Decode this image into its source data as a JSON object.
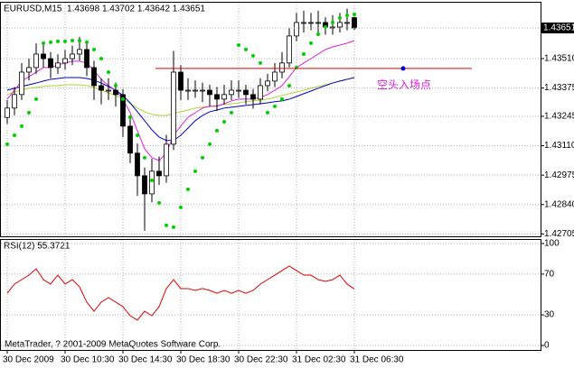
{
  "chart_data": [
    {
      "type": "candlestick",
      "title": "EURUSD,M15  1.43698 1.43702 1.43642 1.43651",
      "categories": [
        "30 Dec 2009",
        null,
        null,
        null,
        null,
        null,
        null,
        null,
        "30 Dec 10:30",
        null,
        null,
        null,
        null,
        null,
        null,
        null,
        "30 Dec 14:30",
        null,
        null,
        null,
        null,
        null,
        null,
        null,
        "30 Dec 18:30",
        null,
        null,
        null,
        null,
        null,
        null,
        null,
        "30 Dec 22:30",
        null,
        null,
        null,
        null,
        null,
        null,
        null,
        "31 Dec 02:30",
        null,
        null,
        null,
        null,
        null,
        null,
        null,
        "31 Dec 06:30"
      ],
      "open": [
        1.4324,
        1.43283,
        1.43345,
        1.43448,
        1.43469,
        1.43531,
        1.4351,
        1.43469,
        1.4349,
        1.4351,
        1.43531,
        1.43552,
        1.43469,
        1.43386,
        1.43365,
        1.43365,
        1.43345,
        1.432,
        1.43076,
        1.42972,
        1.42889,
        1.42993,
        1.42972,
        1.43117,
        1.43448,
        1.43365,
        1.43365,
        1.43365,
        1.43365,
        1.43345,
        1.43324,
        1.43345,
        1.43365,
        1.43365,
        1.43345,
        1.43324,
        1.43386,
        1.43407,
        1.43448,
        1.4349,
        1.43614,
        1.43676,
        1.43676,
        1.43676,
        1.43676,
        1.43655,
        1.43655,
        1.43676,
        1.43698
      ],
      "high": [
        1.4332,
        1.4338,
        1.4349,
        1.4351,
        1.4358,
        1.4358,
        1.4354,
        1.4353,
        1.4355,
        1.4357,
        1.4361,
        1.4358,
        1.435,
        1.4342,
        1.4342,
        1.434,
        1.4337,
        1.4325,
        1.4312,
        1.4301,
        1.4305,
        1.4306,
        1.4316,
        1.43545,
        1.4348,
        1.4342,
        1.4341,
        1.434,
        1.4339,
        1.4338,
        1.4339,
        1.4341,
        1.4341,
        1.4339,
        1.4337,
        1.4342,
        1.4344,
        1.4349,
        1.4354,
        1.4365,
        1.4372,
        1.4373,
        1.4372,
        1.4373,
        1.437,
        1.4371,
        1.4372,
        1.4374,
        1.43702
      ],
      "low": [
        1.4321,
        1.4325,
        1.4332,
        1.4341,
        1.4344,
        1.4347,
        1.4342,
        1.4344,
        1.4346,
        1.4348,
        1.435,
        1.4343,
        1.4332,
        1.433,
        1.4332,
        1.4329,
        1.4315,
        1.4303,
        1.4288,
        1.4272,
        1.4285,
        1.4293,
        1.4294,
        1.4309,
        1.4332,
        1.4332,
        1.4333,
        1.4331,
        1.4329,
        1.4327,
        1.433,
        1.4332,
        1.4333,
        1.433,
        1.4328,
        1.433,
        1.4336,
        1.4338,
        1.4342,
        1.4347,
        1.4359,
        1.4363,
        1.4364,
        1.4363,
        1.4362,
        1.4362,
        1.4363,
        1.4364,
        1.43642
      ],
      "close": [
        1.43283,
        1.43345,
        1.43448,
        1.43469,
        1.43531,
        1.4351,
        1.43469,
        1.4349,
        1.4351,
        1.43531,
        1.43552,
        1.43469,
        1.43386,
        1.43365,
        1.43365,
        1.43345,
        1.432,
        1.43076,
        1.42972,
        1.42889,
        1.42993,
        1.42972,
        1.43117,
        1.43448,
        1.43365,
        1.43365,
        1.43365,
        1.43365,
        1.43345,
        1.43324,
        1.43345,
        1.43365,
        1.43365,
        1.43345,
        1.43324,
        1.43386,
        1.43407,
        1.43448,
        1.4349,
        1.43614,
        1.43676,
        1.43676,
        1.43676,
        1.43676,
        1.43655,
        1.43655,
        1.43676,
        1.43676,
        1.43651
      ],
      "sar": {
        "color": "#00d000",
        "values": [
          1.43117,
          1.43158,
          1.432,
          1.43262,
          1.43324,
          1.43581,
          1.43585,
          1.43589,
          1.43589,
          1.43593,
          1.43593,
          1.43585,
          1.43552,
          1.4351,
          1.43448,
          1.43386,
          1.43324,
          1.43241,
          1.43158,
          1.43055,
          1.42951,
          1.42848,
          1.42744,
          1.42736,
          1.42827,
          1.4291,
          1.42993,
          1.43055,
          1.43117,
          1.43179,
          1.4322,
          1.43262,
          1.43572,
          1.43552,
          1.43523,
          1.4349,
          1.43262,
          1.43291,
          1.43324,
          1.43386,
          1.43469,
          1.43531,
          1.43581,
          1.43622,
          1.43655,
          1.43676,
          1.43697,
          1.43709,
          1.43713
        ]
      },
      "moving_averages": [
        {
          "color": "#a8d830",
          "values": [
            1.43345,
            1.43357,
            1.43365,
            1.43374,
            1.43378,
            1.43382,
            1.43386,
            1.43386,
            1.4339,
            1.4339,
            1.4339,
            1.43386,
            1.43378,
            1.43365,
            1.43353,
            1.43341,
            1.43324,
            1.43303,
            1.43283,
            1.43266,
            1.43254,
            1.43249,
            1.43249,
            1.43258,
            1.43266,
            1.43274,
            1.43283,
            1.43287,
            1.43291,
            1.43295,
            1.43299,
            1.43303,
            1.43307,
            1.43312,
            1.43316,
            1.4332,
            1.43324,
            1.43332,
            1.43341,
            1.43349,
            1.43357,
            1.43365,
            1.43374,
            1.43382,
            1.4339,
            1.43398,
            1.43407,
            1.43415,
            1.43423
          ]
        },
        {
          "color": "#0000c8",
          "values": [
            1.43365,
            1.43374,
            1.43382,
            1.4339,
            1.43398,
            1.43407,
            1.43415,
            1.43419,
            1.43423,
            1.43423,
            1.43423,
            1.43419,
            1.43411,
            1.43398,
            1.43382,
            1.43365,
            1.43341,
            1.43307,
            1.43266,
            1.43225,
            1.43183,
            1.4315,
            1.43134,
            1.43134,
            1.43158,
            1.43191,
            1.43225,
            1.43249,
            1.43266,
            1.43274,
            1.43283,
            1.43287,
            1.43291,
            1.43295,
            1.43299,
            1.43303,
            1.43307,
            1.43312,
            1.43316,
            1.43324,
            1.43336,
            1.43349,
            1.43361,
            1.43374,
            1.43386,
            1.43398,
            1.43407,
            1.43415,
            1.43423
          ]
        },
        {
          "color": "#e020e0",
          "values": [
            1.43324,
            1.43365,
            1.43407,
            1.43427,
            1.43448,
            1.43469,
            1.43469,
            1.43481,
            1.4349,
            1.43498,
            1.43498,
            1.4349,
            1.43456,
            1.43415,
            1.43386,
            1.43365,
            1.43324,
            1.43262,
            1.43179,
            1.43096,
            1.43055,
            1.43042,
            1.43076,
            1.43158,
            1.432,
            1.43241,
            1.43262,
            1.43283,
            1.43291,
            1.43291,
            1.43303,
            1.43316,
            1.43324,
            1.43324,
            1.43324,
            1.43332,
            1.43345,
            1.43365,
            1.43386,
            1.43427,
            1.43469,
            1.4349,
            1.4351,
            1.43531,
            1.43552,
            1.43564,
            1.43572,
            1.43581,
            1.43593
          ]
        }
      ],
      "current_price": 1.43651,
      "annotation": {
        "level": 1.43465,
        "label": "空头入场点",
        "color": "#e020e0",
        "line_color": "#e00000",
        "dot_color": "#0000d0"
      },
      "ylim": [
        1.42694,
        1.43771
      ],
      "yticks": [
        {
          "value": 1.4351,
          "label": "1.43510"
        },
        1.43375,
        1.43245,
        {
          "value": 1.4311,
          "label": "1.43110"
        },
        1.42975,
        {
          "value": 1.4284,
          "label": "1.42840"
        },
        1.42705
      ],
      "grid": true
    },
    {
      "type": "line",
      "title": "RSI(12) 55.3721",
      "color": "#e00000",
      "values": [
        51.3,
        60.2,
        64.6,
        69.0,
        75.2,
        64.6,
        60.2,
        69.0,
        60.2,
        64.6,
        57.5,
        42.5,
        33.6,
        42.5,
        46.9,
        42.5,
        38.1,
        29.2,
        24.8,
        33.6,
        29.2,
        38.1,
        55.8,
        64.6,
        55.8,
        55.8,
        54.0,
        55.8,
        54.0,
        51.3,
        54.0,
        51.3,
        54.0,
        51.3,
        54.0,
        60.2,
        64.6,
        69.0,
        73.5,
        77.9,
        73.5,
        69.0,
        69.0,
        64.6,
        62.8,
        64.6,
        69.0,
        60.2,
        55.3721
      ],
      "ylim": [
        0,
        100
      ],
      "yticks": [
        100,
        70,
        30,
        0
      ],
      "grid": true,
      "footer": "MetaTrader, ? 2001-2009 MetaQuotes Software Corp."
    }
  ]
}
